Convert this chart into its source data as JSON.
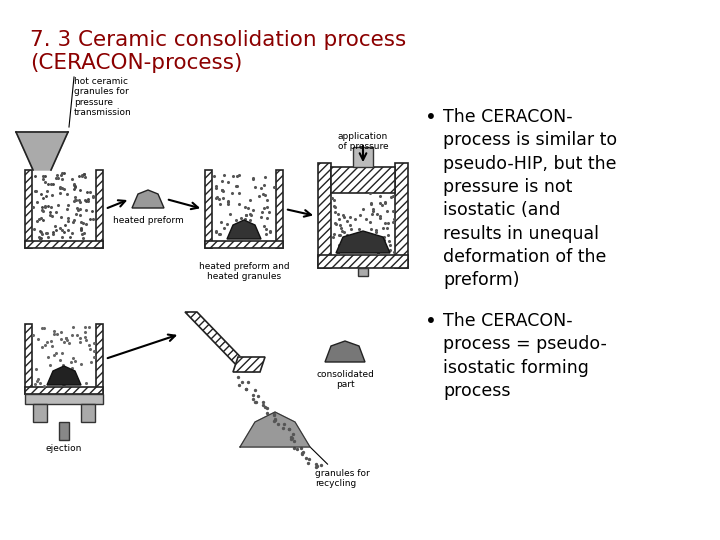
{
  "title_line1": "7. 3 Ceramic consolidation process",
  "title_line2": "(CERACON-process)",
  "title_color": "#8B0000",
  "title_fontsize": 15.5,
  "bullet1": "The CERACON-\nprocess is similar to\npseudo-HIP, but the\npressure is not\nisostatic (and\nresults in unequal\ndeformation of the\npreform)",
  "bullet2": "The CERACON-\nprocess = pseudo-\nisostatic forming\nprocess",
  "bullet_fontsize": 12.5,
  "bullet_color": "#000000",
  "slide_bg": "#ffffff",
  "granule_color": "#555555",
  "hatch_pattern": "////",
  "wall_color": "#222222",
  "preform_color": "#666666",
  "dark_preform_color": "#333333"
}
